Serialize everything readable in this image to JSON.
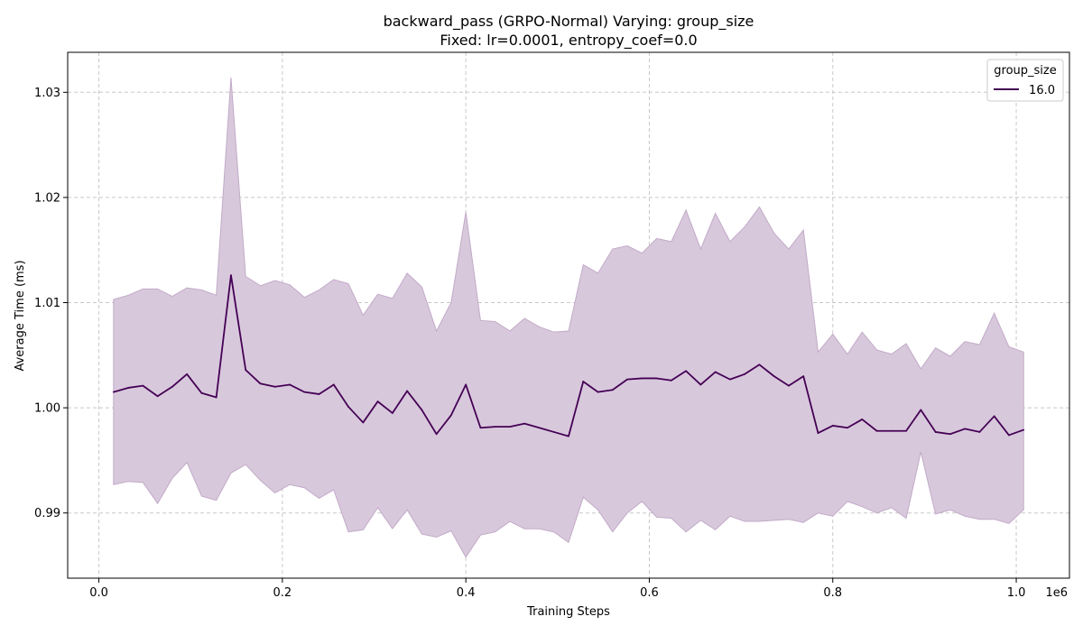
{
  "chart_data": {
    "type": "line",
    "title_line1": "backward_pass (GRPO-Normal) Varying: group_size",
    "title_line2": "Fixed: lr=0.0001, entropy_coef=0.0",
    "xlabel": "Training Steps",
    "ylabel": "Average Time (ms)",
    "x_offset_label": "1e6",
    "xlim": [
      -0.034,
      1.058
    ],
    "ylim": [
      0.9838,
      1.0338
    ],
    "x_ticks": [
      0.0,
      0.2,
      0.4,
      0.6,
      0.8,
      1.0
    ],
    "x_tick_labels": [
      "0.0",
      "0.2",
      "0.4",
      "0.6",
      "0.8",
      "1.0"
    ],
    "y_ticks": [
      0.99,
      1.0,
      1.01,
      1.02,
      1.03
    ],
    "y_tick_labels": [
      "0.99",
      "1.00",
      "1.01",
      "1.02",
      "1.03"
    ],
    "grid": true,
    "legend": {
      "title": "group_size",
      "position": "top-right",
      "entries": [
        "16.0"
      ]
    },
    "colors": {
      "line": "#440154",
      "band": "#d8c8dc",
      "band_edge": "#c2aac8",
      "grid": "#c8c8c8"
    },
    "series": [
      {
        "name": "16.0",
        "x": [
          0.016,
          0.032,
          0.048,
          0.064,
          0.08,
          0.096,
          0.112,
          0.128,
          0.144,
          0.16,
          0.176,
          0.192,
          0.208,
          0.224,
          0.24,
          0.256,
          0.272,
          0.288,
          0.304,
          0.32,
          0.336,
          0.352,
          0.368,
          0.384,
          0.4,
          0.416,
          0.432,
          0.448,
          0.464,
          0.48,
          0.496,
          0.512,
          0.528,
          0.544,
          0.56,
          0.576,
          0.592,
          0.608,
          0.624,
          0.64,
          0.656,
          0.672,
          0.688,
          0.704,
          0.72,
          0.736,
          0.752,
          0.768,
          0.784,
          0.8,
          0.816,
          0.832,
          0.848,
          0.864,
          0.88,
          0.896,
          0.912,
          0.928,
          0.944,
          0.96,
          0.976,
          0.992,
          1.008
        ],
        "y": [
          1.0015,
          1.0019,
          1.0021,
          1.0011,
          1.002,
          1.0032,
          1.0014,
          1.001,
          1.0126,
          1.0036,
          1.0023,
          1.002,
          1.0022,
          1.0015,
          1.0013,
          1.0022,
          1.0001,
          0.9986,
          1.0006,
          0.9995,
          1.0016,
          0.9998,
          0.9975,
          0.9993,
          1.0022,
          0.9981,
          0.9982,
          0.9982,
          0.9985,
          0.9981,
          0.9977,
          0.9973,
          1.0025,
          1.0015,
          1.0017,
          1.0027,
          1.0028,
          1.0028,
          1.0026,
          1.0035,
          1.0022,
          1.0034,
          1.0027,
          1.0032,
          1.0041,
          1.003,
          1.0021,
          1.003,
          0.9976,
          0.9983,
          0.9981,
          0.9989,
          0.9978,
          0.9978,
          0.9978,
          0.9998,
          0.9977,
          0.9975,
          0.998,
          0.9977,
          0.9992,
          0.9974,
          0.9979
        ],
        "upper": [
          1.0103,
          1.0107,
          1.0113,
          1.0113,
          1.0106,
          1.0114,
          1.0112,
          1.0107,
          1.0314,
          1.0125,
          1.0116,
          1.0121,
          1.0117,
          1.0105,
          1.0112,
          1.0122,
          1.0118,
          1.0088,
          1.0108,
          1.0104,
          1.0128,
          1.0115,
          1.0073,
          1.01,
          1.0186,
          1.0083,
          1.0082,
          1.0073,
          1.0085,
          1.0077,
          1.0072,
          1.0073,
          1.0136,
          1.0128,
          1.0151,
          1.0154,
          1.0147,
          1.0161,
          1.0158,
          1.0188,
          1.0151,
          1.0185,
          1.0158,
          1.0172,
          1.0191,
          1.0166,
          1.0151,
          1.0169,
          1.0053,
          1.007,
          1.0051,
          1.0072,
          1.0055,
          1.0051,
          1.0061,
          1.0037,
          1.0057,
          1.0049,
          1.0063,
          1.006,
          1.009,
          1.0058,
          1.0053
        ],
        "lower": [
          0.9927,
          0.993,
          0.9929,
          0.9909,
          0.9933,
          0.9948,
          0.9916,
          0.9912,
          0.9938,
          0.9946,
          0.9931,
          0.9919,
          0.9927,
          0.9924,
          0.9914,
          0.9922,
          0.9882,
          0.9884,
          0.9905,
          0.9885,
          0.9903,
          0.988,
          0.9877,
          0.9883,
          0.9858,
          0.9879,
          0.9882,
          0.9892,
          0.9885,
          0.9885,
          0.9882,
          0.9872,
          0.9915,
          0.9903,
          0.9882,
          0.99,
          0.9911,
          0.9896,
          0.9895,
          0.9882,
          0.9893,
          0.9884,
          0.9897,
          0.9892,
          0.9892,
          0.9893,
          0.9894,
          0.9891,
          0.99,
          0.9897,
          0.9911,
          0.9906,
          0.99,
          0.9905,
          0.9895,
          0.9958,
          0.9899,
          0.9903,
          0.9897,
          0.9894,
          0.9894,
          0.989,
          0.9903
        ]
      }
    ]
  }
}
